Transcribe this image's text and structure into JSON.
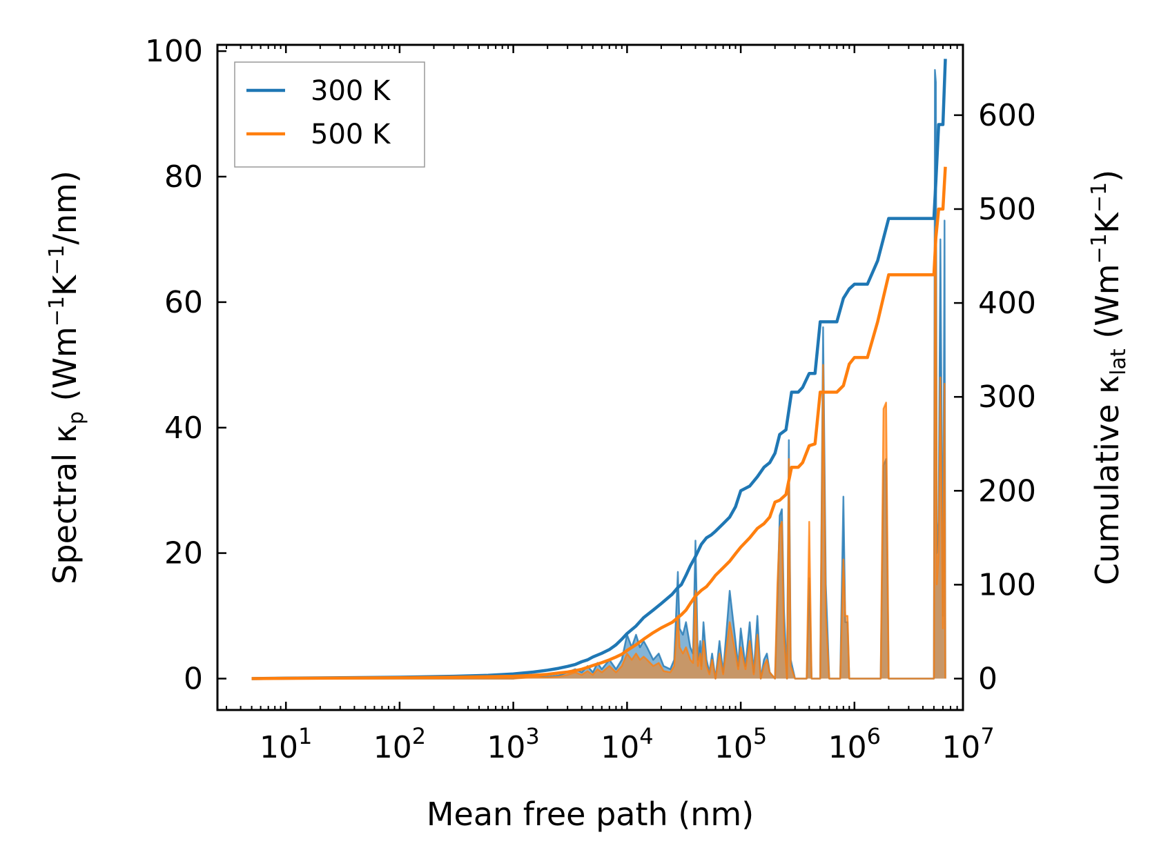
{
  "chart_data": {
    "type": "line",
    "title": "",
    "xlabel": "Mean free path (nm)",
    "ylabel_left": {
      "prefix": "Spectral κ",
      "sub": "p",
      "suffix": " (Wm",
      "sup1": "−1",
      "mid": "K",
      "sup2": "−1",
      "tail": "/nm)"
    },
    "ylabel_right": {
      "prefix": "Cumulative κ",
      "sub": "lat",
      "suffix": " (Wm",
      "sup1": "−1",
      "mid": "K",
      "sup2": "−1",
      "tail": ")"
    },
    "xscale": "log",
    "xlim": [
      2.5,
      9000000
    ],
    "ylim_left": [
      -5,
      101
    ],
    "ylim_right": [
      -33.4,
      674.9
    ],
    "x_ticks": [
      {
        "base": "10",
        "exp": "1",
        "value": 10
      },
      {
        "base": "10",
        "exp": "2",
        "value": 100
      },
      {
        "base": "10",
        "exp": "3",
        "value": 1000
      },
      {
        "base": "10",
        "exp": "4",
        "value": 10000
      },
      {
        "base": "10",
        "exp": "5",
        "value": 100000
      },
      {
        "base": "10",
        "exp": "6",
        "value": 1000000
      },
      {
        "base": "10",
        "exp": "7",
        "value": 10000000
      }
    ],
    "y_left_ticks": [
      "0",
      "20",
      "40",
      "60",
      "80",
      "100"
    ],
    "y_right_ticks": [
      "0",
      "100",
      "200",
      "300",
      "400",
      "500",
      "600"
    ],
    "legend": {
      "position": "top-left",
      "entries": [
        "300 K",
        "500 K"
      ]
    },
    "colors": {
      "300 K": "#1f77b4",
      "500 K": "#ff7f0e"
    },
    "series": [
      {
        "name": "300 K",
        "axis": "right",
        "kind": "cumulative",
        "x": [
          5,
          10,
          100,
          300,
          600,
          1000,
          1500,
          2000,
          2500,
          3000,
          3500,
          4000,
          4500,
          5000,
          6000,
          7000,
          8000,
          9000,
          10000,
          12000,
          14000,
          17000,
          20000,
          25000,
          28000,
          30000,
          33000,
          36000,
          40000,
          45000,
          50000,
          55000,
          60000,
          70000,
          80000,
          90000,
          100000,
          120000,
          140000,
          160000,
          180000,
          200000,
          220000,
          250000,
          280000,
          300000,
          320000,
          350000,
          400000,
          450000,
          500000,
          600000,
          700000,
          800000,
          900000,
          1000000,
          1300000,
          1600000,
          2000000,
          3000000,
          4000000,
          5000000,
          5200000,
          5500000,
          6000000,
          6300000
        ],
        "values": [
          0,
          0.5,
          1.5,
          2.5,
          3.5,
          5,
          7,
          9,
          11,
          13,
          15,
          18,
          20,
          23,
          27,
          31,
          36,
          42,
          48,
          56,
          65,
          73,
          80,
          90,
          97,
          100,
          110,
          120,
          130,
          143,
          150,
          153,
          157,
          165,
          172,
          183,
          200,
          205,
          215,
          225,
          230,
          240,
          260,
          265,
          305,
          305,
          305,
          310,
          325,
          325,
          380,
          380,
          380,
          405,
          415,
          420,
          420,
          445,
          490,
          490,
          490,
          490,
          530,
          590,
          590,
          660
        ]
      },
      {
        "name": "500 K",
        "axis": "right",
        "kind": "cumulative",
        "x": [
          5,
          10,
          100,
          300,
          600,
          1000,
          1500,
          2000,
          2500,
          3000,
          3500,
          4000,
          4500,
          5000,
          6000,
          7000,
          8000,
          9000,
          10000,
          12000,
          14000,
          17000,
          20000,
          25000,
          28000,
          30000,
          33000,
          36000,
          40000,
          45000,
          50000,
          55000,
          60000,
          70000,
          80000,
          90000,
          100000,
          120000,
          140000,
          160000,
          180000,
          200000,
          220000,
          250000,
          280000,
          300000,
          320000,
          350000,
          400000,
          450000,
          500000,
          600000,
          700000,
          800000,
          900000,
          1000000,
          1300000,
          1600000,
          2000000,
          3000000,
          4000000,
          5000000,
          5200000,
          5500000,
          6000000,
          6300000
        ],
        "values": [
          0,
          0.3,
          1,
          1.5,
          2,
          2.5,
          3.5,
          4.5,
          6,
          7,
          8.5,
          10,
          12,
          14,
          17,
          20,
          23,
          26,
          30,
          36,
          42,
          49,
          54,
          60,
          65,
          68,
          73,
          80,
          88,
          94,
          98,
          104,
          110,
          118,
          125,
          133,
          140,
          150,
          160,
          165,
          172,
          188,
          190,
          196,
          225,
          225,
          225,
          230,
          248,
          250,
          305,
          305,
          305,
          312,
          335,
          342,
          342,
          380,
          430,
          430,
          430,
          430,
          470,
          500,
          500,
          545
        ]
      },
      {
        "name": "300 K",
        "axis": "left",
        "kind": "spectral",
        "x": [
          5,
          10,
          100,
          500,
          1000,
          1500,
          2000,
          2500,
          3000,
          3500,
          4000,
          4500,
          5000,
          5500,
          6000,
          7000,
          8000,
          9000,
          10000,
          11000,
          12000,
          13000,
          14000,
          15000,
          17000,
          19000,
          21000,
          24000,
          26000,
          28000,
          29000,
          31000,
          33000,
          36000,
          38000,
          40000,
          42000,
          44000,
          45000,
          47000,
          50000,
          53000,
          56000,
          60000,
          65000,
          70000,
          80000,
          90000,
          95000,
          100000,
          110000,
          120000,
          130000,
          140000,
          150000,
          160000,
          170000,
          180000,
          200000,
          210000,
          220000,
          230000,
          240000,
          255000,
          265000,
          275000,
          300000,
          340000,
          360000,
          380000,
          400000,
          420000,
          460000,
          500000,
          530000,
          560000,
          600000,
          700000,
          750000,
          800000,
          830000,
          870000,
          900000,
          1000000,
          1100000,
          1500000,
          1600000,
          1700000,
          1800000,
          1900000,
          2000000,
          2100000,
          3000000,
          4500000,
          5000000,
          5100000,
          5200000,
          5300000,
          5500000,
          5700000,
          6000000,
          6200000,
          6300000
        ],
        "values": [
          0,
          0,
          0,
          0,
          0,
          0.5,
          0.3,
          0.5,
          1,
          1.5,
          1,
          2,
          1,
          2.5,
          1.5,
          3,
          1.5,
          3,
          7,
          5,
          7,
          5,
          6,
          5,
          3,
          4,
          2,
          1.5,
          3,
          17,
          8,
          7,
          9,
          5,
          4,
          22,
          3,
          6,
          2,
          9,
          3,
          1,
          4,
          0,
          6,
          1,
          14,
          6,
          2,
          8,
          2,
          9,
          1,
          10,
          0,
          3,
          4,
          1,
          0,
          12,
          26,
          27,
          11,
          0,
          38,
          3,
          0,
          0,
          0,
          0,
          16,
          0,
          0,
          0,
          56,
          15,
          0,
          0,
          0,
          29,
          9,
          9,
          0,
          0,
          0,
          0,
          0,
          0,
          34,
          35,
          0,
          0,
          0,
          0,
          0,
          97,
          95,
          20,
          25,
          70,
          10,
          73,
          0
        ]
      },
      {
        "name": "500 K",
        "axis": "left",
        "kind": "spectral",
        "x": [
          5,
          10,
          100,
          500,
          1000,
          1500,
          2000,
          2500,
          3000,
          3500,
          4000,
          4500,
          5000,
          5500,
          6000,
          7000,
          8000,
          9000,
          10000,
          11000,
          12000,
          13000,
          14000,
          15000,
          17000,
          19000,
          21000,
          24000,
          26000,
          28000,
          29000,
          31000,
          33000,
          36000,
          38000,
          40000,
          42000,
          44000,
          45000,
          47000,
          50000,
          53000,
          56000,
          60000,
          65000,
          70000,
          80000,
          90000,
          95000,
          100000,
          110000,
          120000,
          130000,
          140000,
          150000,
          160000,
          170000,
          180000,
          200000,
          210000,
          220000,
          230000,
          240000,
          255000,
          265000,
          275000,
          300000,
          340000,
          360000,
          380000,
          400000,
          420000,
          460000,
          500000,
          530000,
          560000,
          600000,
          700000,
          750000,
          800000,
          830000,
          870000,
          900000,
          1000000,
          1100000,
          1500000,
          1600000,
          1700000,
          1800000,
          1900000,
          2000000,
          2100000,
          3000000,
          4500000,
          5000000,
          5100000,
          5200000,
          5300000,
          5500000,
          5700000,
          6000000,
          6200000,
          6300000
        ],
        "values": [
          0,
          0,
          0,
          0,
          0,
          0.2,
          0.2,
          0.3,
          0.6,
          1,
          0.6,
          1.2,
          0.6,
          1.5,
          1,
          2,
          1,
          2,
          4,
          3,
          4,
          3,
          3.5,
          3,
          2,
          2.5,
          1.2,
          1,
          2,
          10,
          5,
          4,
          5,
          3,
          2.5,
          14,
          2,
          4,
          1.5,
          6,
          2,
          0.7,
          3,
          0,
          4,
          0.7,
          9,
          4,
          1.5,
          5,
          1.5,
          6,
          0.7,
          7,
          0,
          2,
          3,
          1,
          0,
          15,
          24,
          25,
          7,
          0,
          35,
          2,
          0,
          0,
          0,
          0,
          25,
          0,
          0,
          0,
          50,
          10,
          0,
          0,
          0,
          19,
          10,
          10,
          0,
          0,
          0,
          0,
          0,
          0,
          43,
          44,
          0,
          0,
          0,
          0,
          0,
          70,
          72,
          15,
          20,
          48,
          8,
          47,
          0
        ]
      }
    ]
  }
}
